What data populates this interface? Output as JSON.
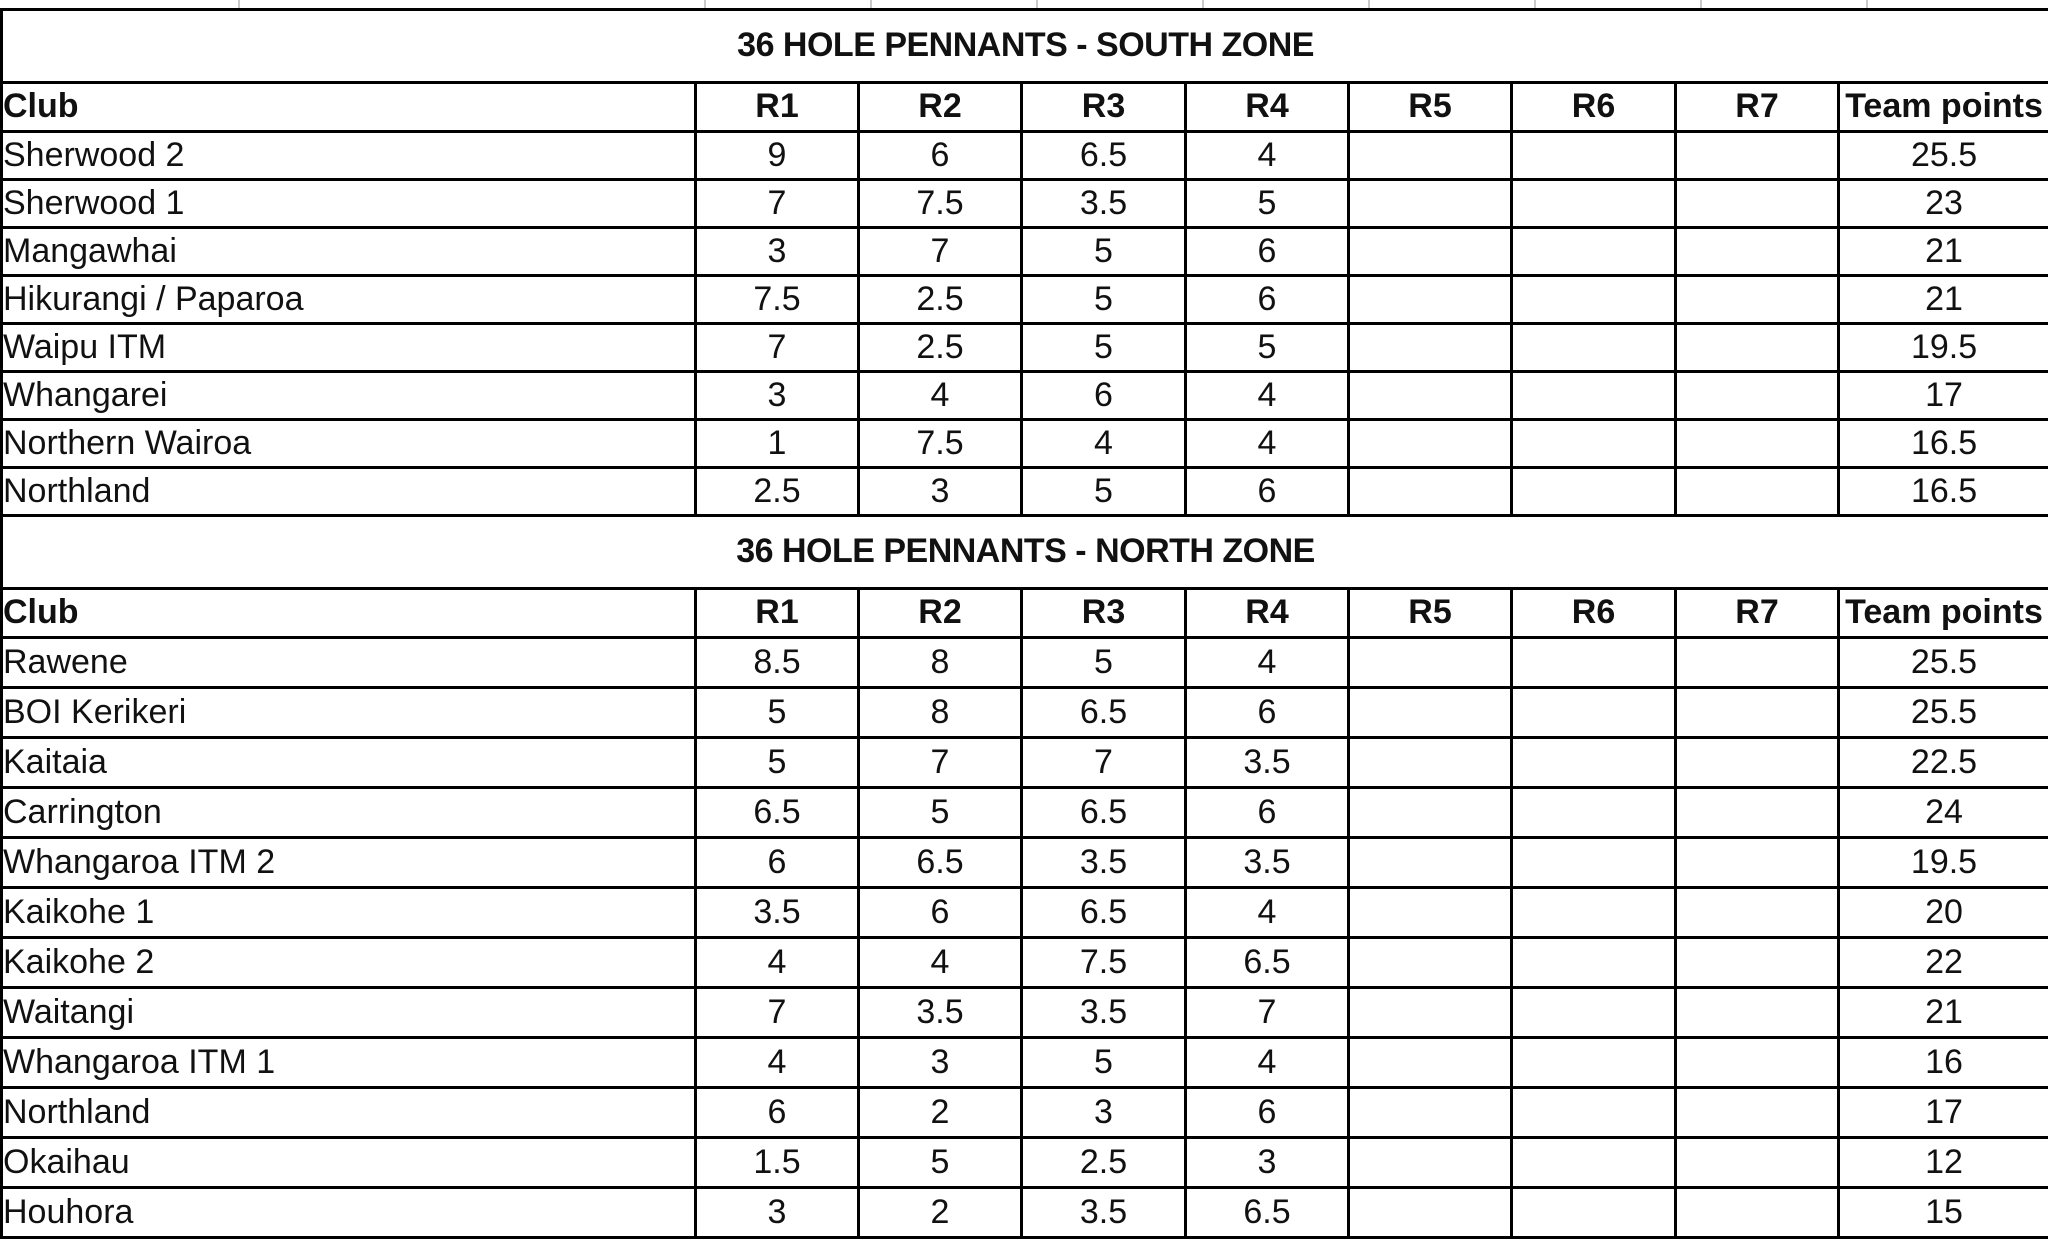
{
  "colors": {
    "background": "#ffffff",
    "border": "#000000",
    "text": "#111111",
    "gridline": "#c9c9c9"
  },
  "tables": [
    {
      "title": "36 HOLE PENNANTS - SOUTH ZONE",
      "columns": [
        "Club",
        "R1",
        "R2",
        "R3",
        "R4",
        "R5",
        "R6",
        "R7",
        "Team points"
      ],
      "rows": [
        [
          "Sherwood 2",
          "9",
          "6",
          "6.5",
          "4",
          "",
          "",
          "",
          "25.5"
        ],
        [
          "Sherwood 1",
          "7",
          "7.5",
          "3.5",
          "5",
          "",
          "",
          "",
          "23"
        ],
        [
          "Mangawhai",
          "3",
          "7",
          "5",
          "6",
          "",
          "",
          "",
          "21"
        ],
        [
          "Hikurangi / Paparoa",
          "7.5",
          "2.5",
          "5",
          "6",
          "",
          "",
          "",
          "21"
        ],
        [
          "Waipu ITM",
          "7",
          "2.5",
          "5",
          "5",
          "",
          "",
          "",
          "19.5"
        ],
        [
          "Whangarei",
          "3",
          "4",
          "6",
          "4",
          "",
          "",
          "",
          "17"
        ],
        [
          "Northern Wairoa",
          "1",
          "7.5",
          "4",
          "4",
          "",
          "",
          "",
          "16.5"
        ],
        [
          "Northland",
          "2.5",
          "3",
          "5",
          "6",
          "",
          "",
          "",
          "16.5"
        ]
      ]
    },
    {
      "title": "36 HOLE PENNANTS - NORTH ZONE",
      "columns": [
        "Club",
        "R1",
        "R2",
        "R3",
        "R4",
        "R5",
        "R6",
        "R7",
        "Team points"
      ],
      "rows": [
        [
          "Rawene",
          "8.5",
          "8",
          "5",
          "4",
          "",
          "",
          "",
          "25.5"
        ],
        [
          "BOI Kerikeri",
          "5",
          "8",
          "6.5",
          "6",
          "",
          "",
          "",
          "25.5"
        ],
        [
          "Kaitaia",
          "5",
          "7",
          "7",
          "3.5",
          "",
          "",
          "",
          "22.5"
        ],
        [
          "Carrington",
          "6.5",
          "5",
          "6.5",
          "6",
          "",
          "",
          "",
          "24"
        ],
        [
          "Whangaroa ITM 2",
          "6",
          "6.5",
          "3.5",
          "3.5",
          "",
          "",
          "",
          "19.5"
        ],
        [
          "Kaikohe 1",
          "3.5",
          "6",
          "6.5",
          "4",
          "",
          "",
          "",
          "20"
        ],
        [
          "Kaikohe 2",
          "4",
          "4",
          "7.5",
          "6.5",
          "",
          "",
          "",
          "22"
        ],
        [
          "Waitangi",
          "7",
          "3.5",
          "3.5",
          "7",
          "",
          "",
          "",
          "21"
        ],
        [
          "Whangaroa ITM 1",
          "4",
          "3",
          "5",
          "4",
          "",
          "",
          "",
          "16"
        ],
        [
          "Northland",
          "6",
          "2",
          "3",
          "6",
          "",
          "",
          "",
          "17"
        ],
        [
          "Okaihau",
          "1.5",
          "5",
          "2.5",
          "3",
          "",
          "",
          "",
          "12"
        ],
        [
          "Houhora",
          "3",
          "2",
          "3.5",
          "6.5",
          "",
          "",
          "",
          "15"
        ]
      ]
    }
  ]
}
